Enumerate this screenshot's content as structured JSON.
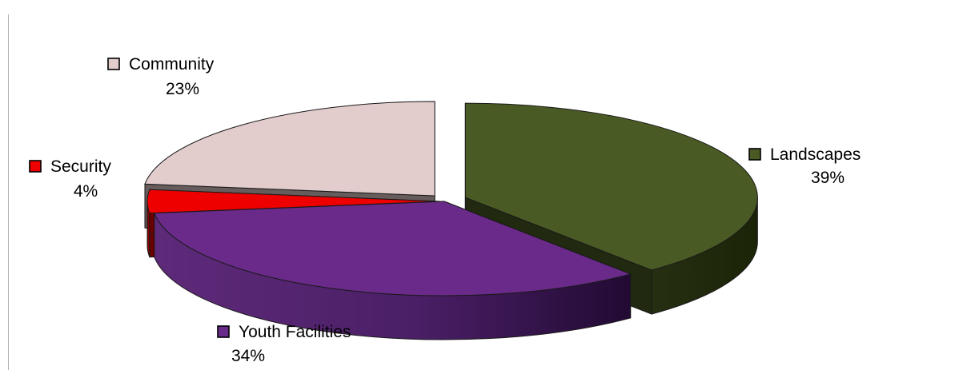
{
  "chart_data": {
    "type": "pie",
    "three_d": true,
    "exploded": true,
    "categories": [
      "Landscapes",
      "Youth Facilities",
      "Security",
      "Community"
    ],
    "values": [
      39,
      34,
      4,
      23
    ],
    "labels": [
      "39%",
      "34%",
      "4%",
      "23%"
    ],
    "colors": {
      "Landscapes": "#4a5a24",
      "Youth Facilities": "#6a2a8a",
      "Security": "#ee0000",
      "Community": "#e2cccc"
    },
    "title": "",
    "legend": "data labels with color keys"
  }
}
